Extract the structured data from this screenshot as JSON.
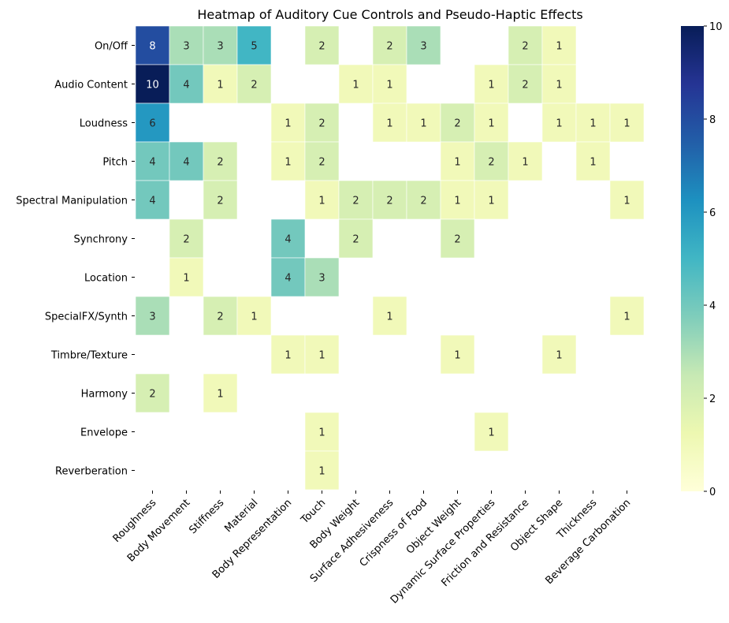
{
  "chart_data": {
    "type": "heatmap",
    "title": "Heatmap of Auditory Cue Controls and Pseudo-Haptic Effects",
    "xlabel": "",
    "ylabel": "",
    "rows": [
      "On/Off",
      "Audio Content",
      "Loudness",
      "Pitch",
      "Spectral Manipulation",
      "Synchrony",
      "Location",
      "SpecialFX/Synth",
      "Timbre/Texture",
      "Harmony",
      "Envelope",
      "Reverberation"
    ],
    "columns": [
      "Roughness",
      "Body Movement",
      "Stiffness",
      "Material",
      "Body Representation",
      "Touch",
      "Body Weight",
      "Surface Adhesiveness",
      "Crispness of Food",
      "Object Weight",
      "Dynamic Surface Properties",
      "Friction and Resistance",
      "Object Shape",
      "Thickness",
      "Beverage Carbonation"
    ],
    "values": [
      [
        8,
        3,
        3,
        5,
        null,
        2,
        null,
        2,
        3,
        null,
        null,
        2,
        1,
        null,
        null
      ],
      [
        10,
        4,
        1,
        2,
        null,
        null,
        1,
        1,
        null,
        null,
        1,
        2,
        1,
        null,
        null
      ],
      [
        6,
        null,
        null,
        null,
        1,
        2,
        null,
        1,
        1,
        2,
        1,
        null,
        1,
        1,
        1
      ],
      [
        4,
        4,
        2,
        null,
        1,
        2,
        null,
        null,
        null,
        1,
        2,
        1,
        null,
        1,
        null
      ],
      [
        4,
        null,
        2,
        null,
        null,
        1,
        2,
        2,
        2,
        1,
        1,
        null,
        null,
        null,
        1
      ],
      [
        null,
        2,
        null,
        null,
        4,
        null,
        2,
        null,
        null,
        2,
        null,
        null,
        null,
        null,
        null
      ],
      [
        null,
        1,
        null,
        null,
        4,
        3,
        null,
        null,
        null,
        null,
        null,
        null,
        null,
        null,
        null
      ],
      [
        3,
        null,
        2,
        1,
        null,
        null,
        null,
        1,
        null,
        null,
        null,
        null,
        null,
        null,
        1
      ],
      [
        null,
        null,
        null,
        null,
        1,
        1,
        null,
        null,
        null,
        1,
        null,
        null,
        1,
        null,
        null
      ],
      [
        2,
        null,
        1,
        null,
        null,
        null,
        null,
        null,
        null,
        null,
        null,
        null,
        null,
        null,
        null
      ],
      [
        null,
        null,
        null,
        null,
        null,
        1,
        null,
        null,
        null,
        null,
        1,
        null,
        null,
        null,
        null
      ],
      [
        null,
        null,
        null,
        null,
        null,
        1,
        null,
        null,
        null,
        null,
        null,
        null,
        null,
        null,
        null
      ]
    ],
    "colormap": "YlGnBu",
    "vmin": 0,
    "vmax": 10,
    "colorbar_ticks": [
      0,
      2,
      4,
      6,
      8,
      10
    ],
    "grid": false
  }
}
